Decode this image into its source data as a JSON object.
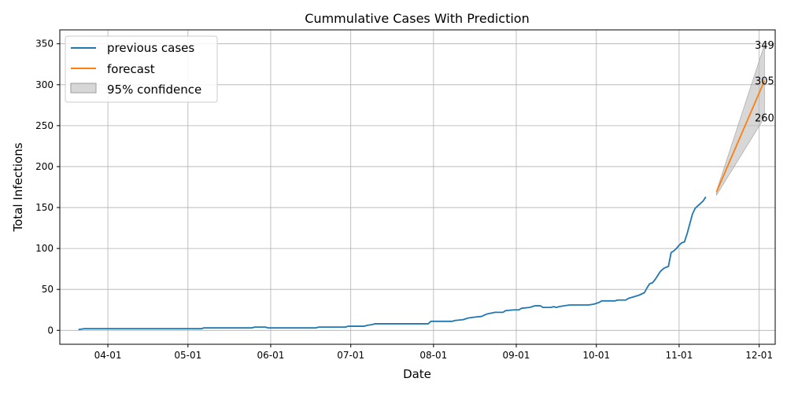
{
  "chart_data": {
    "type": "line",
    "title": "Cummulative Cases With Prediction",
    "xlabel": "Date",
    "ylabel": "Total Infections",
    "x_ticks": [
      "04-01",
      "05-01",
      "06-01",
      "07-01",
      "08-01",
      "09-01",
      "10-01",
      "11-01",
      "12-01"
    ],
    "x_tick_dates": [
      "2020-04-01",
      "2020-05-01",
      "2020-06-01",
      "2020-07-01",
      "2020-08-01",
      "2020-09-01",
      "2020-10-01",
      "2020-11-01",
      "2020-12-01"
    ],
    "xlim": [
      "2020-03-14",
      "2020-12-07"
    ],
    "ylim": [
      -17,
      367
    ],
    "y_ticks": [
      0,
      50,
      100,
      150,
      200,
      250,
      300,
      350
    ],
    "grid": true,
    "legend_placement": "top-left",
    "series": [
      {
        "name": "previous cases",
        "color": "#1f77b4",
        "points": [
          [
            "2020-03-21",
            1
          ],
          [
            "2020-03-23",
            2
          ],
          [
            "2020-04-05",
            2
          ],
          [
            "2020-05-01",
            2
          ],
          [
            "2020-05-06",
            2
          ],
          [
            "2020-05-07",
            3
          ],
          [
            "2020-05-20",
            3
          ],
          [
            "2020-05-25",
            3
          ],
          [
            "2020-05-26",
            4
          ],
          [
            "2020-05-30",
            4
          ],
          [
            "2020-05-31",
            3
          ],
          [
            "2020-06-15",
            3
          ],
          [
            "2020-06-18",
            3
          ],
          [
            "2020-06-19",
            4
          ],
          [
            "2020-06-29",
            4
          ],
          [
            "2020-06-30",
            5
          ],
          [
            "2020-07-05",
            5
          ],
          [
            "2020-07-06",
            5
          ],
          [
            "2020-07-07",
            6
          ],
          [
            "2020-07-09",
            7
          ],
          [
            "2020-07-10",
            8
          ],
          [
            "2020-07-30",
            8
          ],
          [
            "2020-07-31",
            11
          ],
          [
            "2020-08-08",
            11
          ],
          [
            "2020-08-09",
            12
          ],
          [
            "2020-08-12",
            13
          ],
          [
            "2020-08-14",
            15
          ],
          [
            "2020-08-16",
            16
          ],
          [
            "2020-08-19",
            17
          ],
          [
            "2020-08-21",
            20
          ],
          [
            "2020-08-24",
            22
          ],
          [
            "2020-08-27",
            22
          ],
          [
            "2020-08-28",
            24
          ],
          [
            "2020-08-31",
            25
          ],
          [
            "2020-09-02",
            25
          ],
          [
            "2020-09-03",
            27
          ],
          [
            "2020-09-06",
            28
          ],
          [
            "2020-09-08",
            30
          ],
          [
            "2020-09-10",
            30
          ],
          [
            "2020-09-11",
            28
          ],
          [
            "2020-09-14",
            28
          ],
          [
            "2020-09-15",
            29
          ],
          [
            "2020-09-16",
            28
          ],
          [
            "2020-09-17",
            29
          ],
          [
            "2020-09-19",
            30
          ],
          [
            "2020-09-21",
            31
          ],
          [
            "2020-09-28",
            31
          ],
          [
            "2020-09-30",
            32
          ],
          [
            "2020-10-02",
            34
          ],
          [
            "2020-10-03",
            36
          ],
          [
            "2020-10-07",
            36
          ],
          [
            "2020-10-08",
            36
          ],
          [
            "2020-10-09",
            37
          ],
          [
            "2020-10-12",
            37
          ],
          [
            "2020-10-13",
            39
          ],
          [
            "2020-10-15",
            41
          ],
          [
            "2020-10-17",
            43
          ],
          [
            "2020-10-19",
            46
          ],
          [
            "2020-10-20",
            52
          ],
          [
            "2020-10-21",
            57
          ],
          [
            "2020-10-22",
            58
          ],
          [
            "2020-10-23",
            62
          ],
          [
            "2020-10-24",
            67
          ],
          [
            "2020-10-25",
            72
          ],
          [
            "2020-10-26",
            75
          ],
          [
            "2020-10-27",
            77
          ],
          [
            "2020-10-28",
            78
          ],
          [
            "2020-10-29",
            95
          ],
          [
            "2020-10-30",
            97
          ],
          [
            "2020-10-31",
            100
          ],
          [
            "2020-11-01",
            104
          ],
          [
            "2020-11-02",
            107
          ],
          [
            "2020-11-03",
            108
          ],
          [
            "2020-11-04",
            118
          ],
          [
            "2020-11-05",
            130
          ],
          [
            "2020-11-06",
            142
          ],
          [
            "2020-11-07",
            149
          ],
          [
            "2020-11-08",
            152
          ],
          [
            "2020-11-09",
            155
          ],
          [
            "2020-11-10",
            158
          ],
          [
            "2020-11-11",
            163
          ]
        ]
      },
      {
        "name": "forecast",
        "color": "#ff7f0e",
        "points": [
          [
            "2020-11-15",
            169
          ],
          [
            "2020-12-03",
            305
          ]
        ]
      }
    ],
    "confidence_band": {
      "name": "95% confidence",
      "color": "#bdbdbd",
      "upper": [
        [
          "2020-11-15",
          170
        ],
        [
          "2020-12-03",
          349
        ]
      ],
      "lower": [
        [
          "2020-11-15",
          165
        ],
        [
          "2020-12-03",
          260
        ]
      ]
    },
    "annotations": [
      {
        "text": "349",
        "date": "2020-12-03",
        "value": 349
      },
      {
        "text": "305",
        "date": "2020-12-03",
        "value": 305
      },
      {
        "text": "260",
        "date": "2020-12-03",
        "value": 260
      }
    ]
  }
}
